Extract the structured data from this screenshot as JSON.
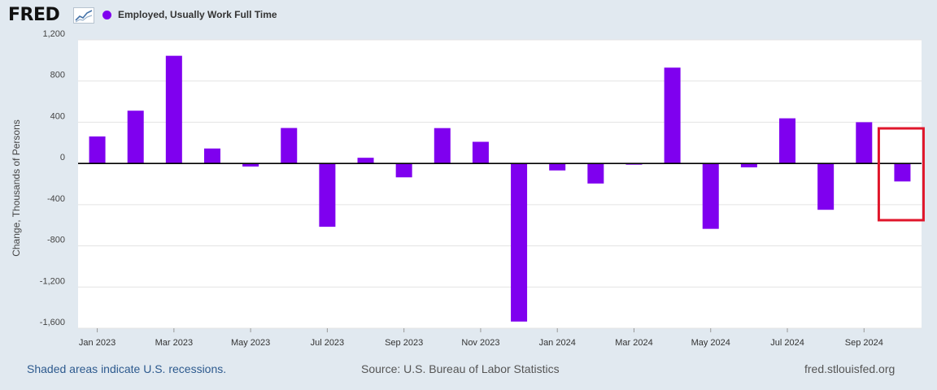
{
  "header": {
    "logo": "FRED",
    "series_name": "Employed, Usually Work Full Time",
    "series_color": "#7f00ef"
  },
  "chart_data": {
    "type": "bar",
    "title": "Employed, Usually Work Full Time",
    "ylabel": "Change, Thousands of Persons",
    "xlabel": "",
    "ylim": [
      -1600,
      1200
    ],
    "yticks": [
      1200,
      800,
      400,
      0,
      -400,
      -800,
      -1200,
      -1600
    ],
    "ytick_labels": [
      "1,200",
      "800",
      "400",
      "0",
      "-400",
      "-800",
      "-1,200",
      "-1,600"
    ],
    "categories": [
      "2023-01",
      "2023-02",
      "2023-03",
      "2023-04",
      "2023-05",
      "2023-06",
      "2023-07",
      "2023-08",
      "2023-09",
      "2023-10",
      "2023-11",
      "2023-12",
      "2024-01",
      "2024-02",
      "2024-03",
      "2024-04",
      "2024-05",
      "2024-06",
      "2024-07",
      "2024-08",
      "2024-09",
      "2024-10"
    ],
    "values": [
      262,
      512,
      1045,
      145,
      -30,
      344,
      -615,
      55,
      -135,
      343,
      210,
      -1535,
      -68,
      -195,
      -12,
      930,
      -635,
      -38,
      438,
      -450,
      400,
      -175
    ],
    "xtick_labels": [
      "Jan 2023",
      "Mar 2023",
      "May 2023",
      "Jul 2023",
      "Sep 2023",
      "Nov 2023",
      "Jan 2024",
      "Mar 2024",
      "May 2024",
      "Jul 2024",
      "Sep 2024"
    ],
    "xtick_indices": [
      0,
      2,
      4,
      6,
      8,
      10,
      12,
      14,
      16,
      18,
      20
    ],
    "bar_color": "#7f00ef",
    "highlight_index": 21,
    "highlight_color": "#e0162b"
  },
  "footer": {
    "recession_note": "Shaded areas indicate U.S. recessions.",
    "source": "Source: U.S. Bureau of Labor Statistics",
    "site": "fred.stlouisfed.org"
  }
}
